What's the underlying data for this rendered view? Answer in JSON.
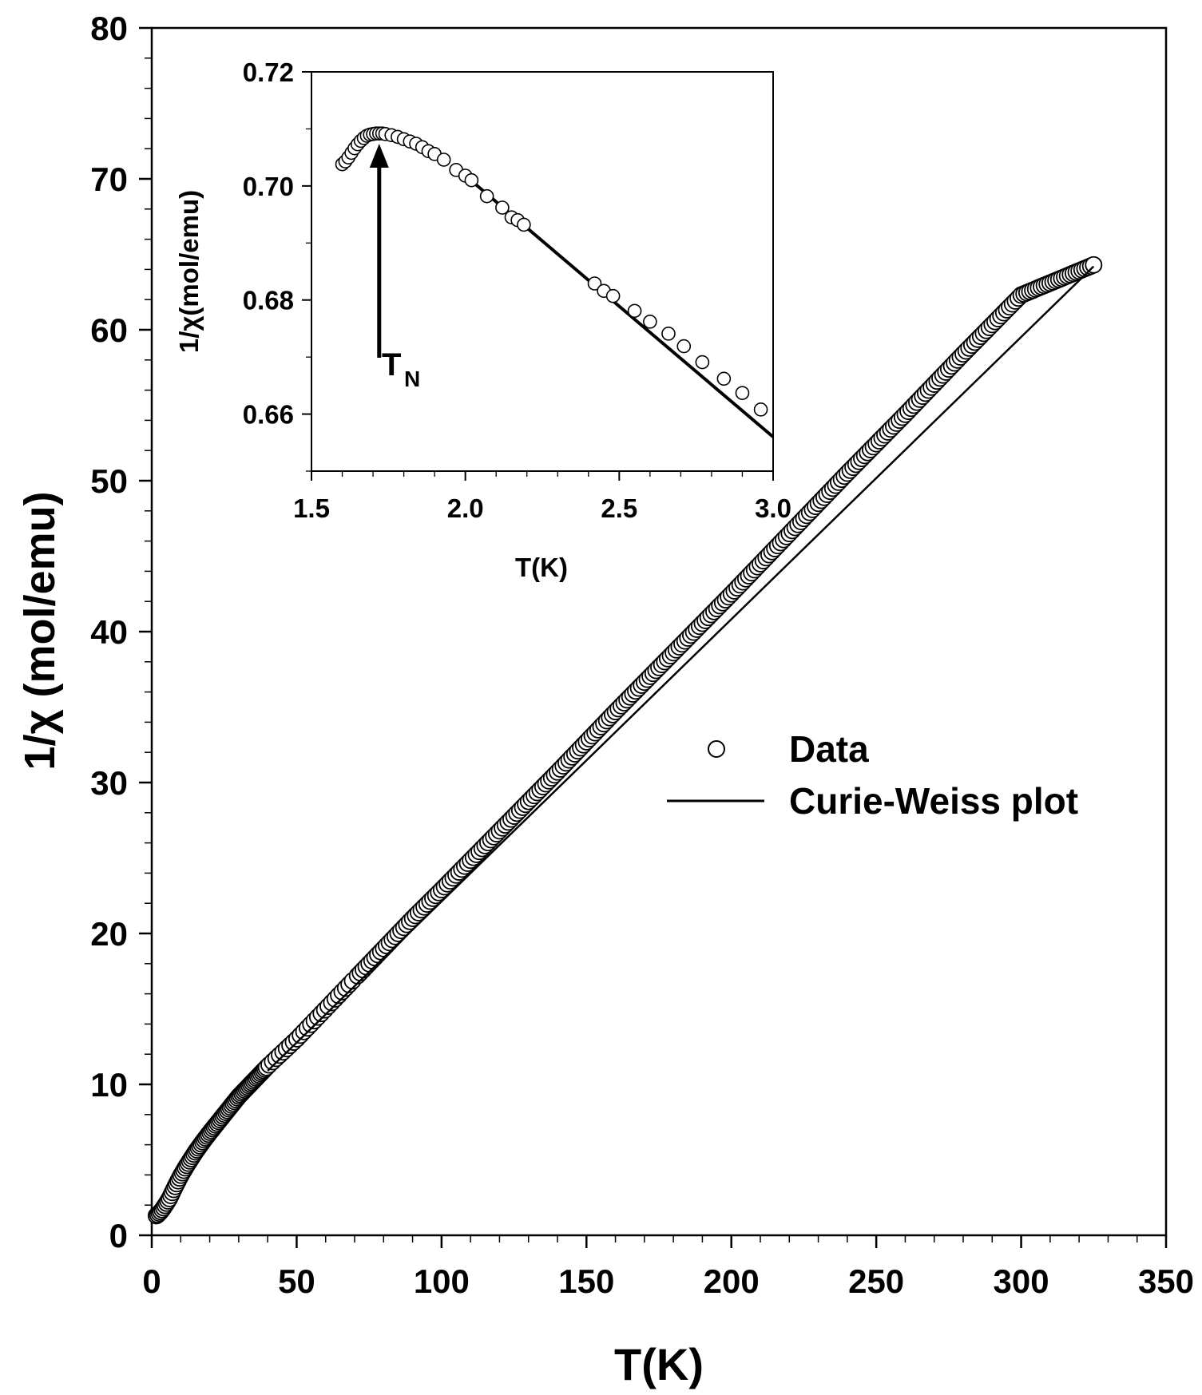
{
  "chart_data": [
    {
      "type": "scatter",
      "xlabel": "T(K)",
      "ylabel": "1/χ (mol/emu)",
      "xlim": [
        0,
        350
      ],
      "ylim": [
        0,
        80
      ],
      "xticks": [
        "0",
        "50",
        "100",
        "150",
        "200",
        "250",
        "300",
        "350"
      ],
      "yticks": [
        "0",
        "10",
        "20",
        "30",
        "40",
        "50",
        "60",
        "70",
        "80"
      ],
      "grid": false,
      "legend_position": "center-right",
      "legend": {
        "data_label": "Data",
        "fit_label": "Curie-Weiss plot"
      },
      "series": [
        {
          "name": "Data",
          "marker": "open-circle",
          "x": [
            1.6,
            2,
            3,
            4,
            5,
            6,
            8,
            10,
            12,
            15,
            18,
            20,
            25,
            30,
            35,
            40,
            45,
            50,
            55,
            60,
            65,
            70,
            80,
            90,
            100,
            120,
            140,
            160,
            180,
            200,
            220,
            240,
            260,
            280,
            300,
            325
          ],
          "y": [
            1.3,
            1.35,
            1.55,
            1.8,
            2.1,
            2.4,
            3.2,
            3.95,
            4.6,
            5.5,
            6.3,
            6.8,
            8.0,
            9.2,
            10.2,
            11.2,
            12.1,
            13.0,
            14.0,
            15.0,
            16.0,
            17.0,
            19.0,
            21.0,
            22.9,
            26.8,
            30.7,
            34.7,
            38.6,
            42.5,
            46.5,
            50.5,
            54.4,
            58.4,
            62.3,
            64.3
          ]
        },
        {
          "name": "Curie-Weiss plot",
          "type": "line",
          "x": [
            40,
            325
          ],
          "y": [
            10.9,
            64.2
          ]
        }
      ]
    },
    {
      "type": "scatter",
      "inset": true,
      "xlabel": "T(K)",
      "ylabel": "1/χ(mol/emu)",
      "xlim": [
        1.5,
        3.0
      ],
      "ylim": [
        0.65,
        0.72
      ],
      "xticks": [
        "1.5",
        "2.0",
        "2.5",
        "3.0"
      ],
      "yticks": [
        "0.66",
        "0.68",
        "0.70",
        "0.72"
      ],
      "annotation": {
        "label": "T",
        "subscript": "N",
        "x": 1.72
      },
      "series": [
        {
          "name": "Data",
          "marker": "open-circle",
          "x": [
            1.6,
            1.61,
            1.62,
            1.63,
            1.64,
            1.65,
            1.66,
            1.67,
            1.68,
            1.69,
            1.7,
            1.71,
            1.72,
            1.73,
            1.74,
            1.76,
            1.78,
            1.8,
            1.82,
            1.84,
            1.86,
            1.88,
            1.9,
            1.93,
            1.97,
            2.0,
            2.02,
            2.07,
            2.12,
            2.15,
            2.17,
            2.19,
            2.42,
            2.45,
            2.48,
            2.55,
            2.6,
            2.66,
            2.71,
            2.77,
            2.84,
            2.9,
            2.96
          ],
          "y": [
            0.7038,
            0.7043,
            0.705,
            0.7058,
            0.7066,
            0.7073,
            0.7079,
            0.7084,
            0.7088,
            0.709,
            0.7091,
            0.7092,
            0.7092,
            0.7092,
            0.7091,
            0.7089,
            0.7086,
            0.7082,
            0.7078,
            0.7074,
            0.7068,
            0.7061,
            0.7056,
            0.7046,
            0.7028,
            0.7018,
            0.701,
            0.6982,
            0.6962,
            0.6945,
            0.694,
            0.6932,
            0.6829,
            0.6816,
            0.6807,
            0.6781,
            0.6762,
            0.6741,
            0.6719,
            0.6691,
            0.6662,
            0.6637,
            0.6608
          ]
        },
        {
          "name": "Curie-Weiss plot",
          "type": "line",
          "x": [
            2.0,
            3.0
          ],
          "y": [
            0.7018,
            0.656
          ]
        }
      ]
    }
  ]
}
